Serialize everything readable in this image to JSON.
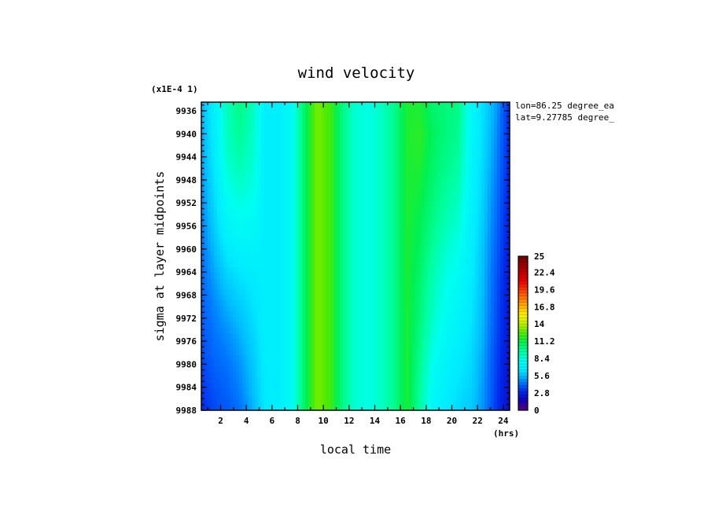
{
  "chart_data": {
    "type": "heatmap",
    "title": "wind velocity",
    "xlabel": "local time",
    "x_units": "(hrs)",
    "ylabel": "sigma at layer midpoints",
    "y_scale_note": "(x1E-4 1)",
    "x_ticks": [
      "2",
      "4",
      "6",
      "8",
      "10",
      "12",
      "14",
      "16",
      "18",
      "20",
      "22",
      "24"
    ],
    "y_ticks": [
      "9936",
      "9940",
      "9944",
      "9948",
      "9952",
      "9956",
      "9960",
      "9964",
      "9968",
      "9972",
      "9976",
      "9980",
      "9984",
      "9988"
    ],
    "xlim": [
      0.5,
      24.5
    ],
    "ylim": [
      9988,
      9934.5
    ],
    "annotations": [
      "lon=86.25 degree_ea",
      "lat=9.27785 degree_"
    ],
    "colorbar": {
      "ticks": [
        "25",
        "22.4",
        "19.6",
        "16.8",
        "14",
        "11.2",
        "8.4",
        "5.6",
        "2.8",
        "0"
      ],
      "min": 0,
      "max": 25
    },
    "x": [
      0.5,
      1.5,
      2.5,
      3.5,
      4.5,
      5.5,
      6.5,
      7.5,
      8.5,
      9.5,
      10.5,
      11.5,
      12.5,
      13.5,
      14.5,
      15.5,
      16.5,
      17.5,
      18.5,
      19.5,
      20.5,
      21.5,
      22.5,
      23.5,
      24.5
    ],
    "y": [
      9935,
      9940,
      9945,
      9950,
      9955,
      9960,
      9965,
      9970,
      9975,
      9980,
      9985,
      9988
    ],
    "z": [
      [
        5.5,
        6.8,
        9.0,
        10.0,
        9.0,
        6.8,
        6.8,
        7.5,
        10.5,
        13.0,
        12.3,
        10.0,
        8.5,
        8.2,
        8.8,
        9.8,
        11.5,
        11.5,
        10.5,
        10.2,
        10.0,
        7.5,
        6.2,
        5.0,
        3.0
      ],
      [
        5.2,
        6.7,
        8.9,
        9.7,
        8.8,
        6.8,
        6.8,
        7.5,
        10.5,
        13.0,
        12.3,
        10.0,
        8.5,
        8.2,
        8.8,
        9.8,
        11.5,
        11.8,
        10.8,
        10.2,
        9.8,
        7.4,
        6.1,
        4.8,
        2.9
      ],
      [
        5.0,
        6.5,
        8.6,
        9.2,
        8.6,
        6.8,
        6.8,
        7.5,
        10.5,
        13.0,
        12.3,
        10.0,
        8.5,
        8.2,
        8.8,
        9.8,
        11.5,
        11.6,
        10.6,
        10.0,
        9.5,
        7.3,
        6.0,
        4.6,
        2.8
      ],
      [
        4.8,
        6.2,
        8.0,
        8.6,
        8.2,
        6.8,
        6.8,
        7.5,
        10.5,
        13.0,
        12.3,
        10.0,
        8.5,
        8.2,
        8.8,
        9.8,
        11.5,
        11.3,
        10.3,
        9.6,
        9.1,
        7.2,
        5.8,
        4.4,
        2.7
      ],
      [
        4.6,
        5.9,
        7.3,
        7.8,
        7.6,
        6.8,
        6.8,
        7.5,
        10.5,
        13.0,
        12.3,
        10.0,
        8.5,
        8.2,
        8.8,
        9.8,
        11.5,
        11.0,
        10.0,
        9.2,
        8.6,
        7.0,
        5.7,
        4.2,
        2.6
      ],
      [
        4.4,
        5.5,
        6.6,
        7.0,
        7.1,
        6.8,
        6.8,
        7.5,
        10.5,
        13.0,
        12.3,
        10.0,
        8.5,
        8.2,
        8.8,
        9.8,
        11.5,
        10.8,
        9.6,
        8.7,
        8.1,
        6.8,
        5.5,
        4.0,
        2.5
      ],
      [
        4.2,
        5.1,
        5.9,
        6.3,
        6.6,
        6.8,
        6.8,
        7.5,
        10.5,
        13.0,
        12.3,
        10.0,
        8.5,
        8.2,
        8.8,
        9.8,
        11.5,
        10.5,
        9.2,
        8.2,
        7.7,
        6.7,
        5.4,
        3.8,
        2.4
      ],
      [
        4.0,
        4.7,
        5.3,
        5.8,
        6.3,
        6.8,
        6.8,
        7.5,
        10.5,
        13.0,
        12.3,
        10.0,
        8.5,
        8.2,
        8.8,
        9.8,
        11.5,
        10.3,
        8.9,
        7.9,
        7.3,
        6.5,
        5.3,
        3.7,
        2.3
      ],
      [
        3.8,
        4.4,
        4.8,
        5.3,
        6.0,
        6.8,
        6.8,
        7.5,
        10.5,
        13.0,
        12.3,
        10.0,
        8.5,
        8.2,
        8.8,
        9.8,
        11.5,
        10.1,
        8.5,
        7.5,
        6.9,
        6.3,
        5.2,
        3.6,
        2.2
      ],
      [
        3.5,
        4.1,
        4.4,
        4.9,
        5.7,
        6.7,
        6.8,
        7.5,
        10.5,
        13.0,
        12.3,
        10.0,
        8.5,
        8.2,
        8.8,
        9.8,
        11.5,
        9.8,
        8.0,
        7.1,
        6.6,
        6.1,
        5.0,
        3.4,
        2.1
      ],
      [
        3.2,
        3.8,
        4.1,
        4.6,
        5.5,
        6.6,
        6.8,
        7.5,
        10.5,
        13.0,
        12.3,
        10.0,
        8.5,
        8.2,
        8.8,
        9.8,
        11.5,
        9.6,
        7.6,
        6.8,
        6.3,
        5.9,
        4.9,
        3.3,
        2.0
      ],
      [
        3.0,
        3.6,
        3.9,
        4.4,
        5.3,
        6.5,
        6.8,
        7.5,
        10.5,
        13.0,
        12.3,
        10.0,
        8.5,
        8.2,
        8.8,
        9.8,
        11.5,
        9.5,
        7.4,
        6.6,
        6.1,
        5.8,
        4.8,
        3.2,
        1.9
      ]
    ]
  }
}
